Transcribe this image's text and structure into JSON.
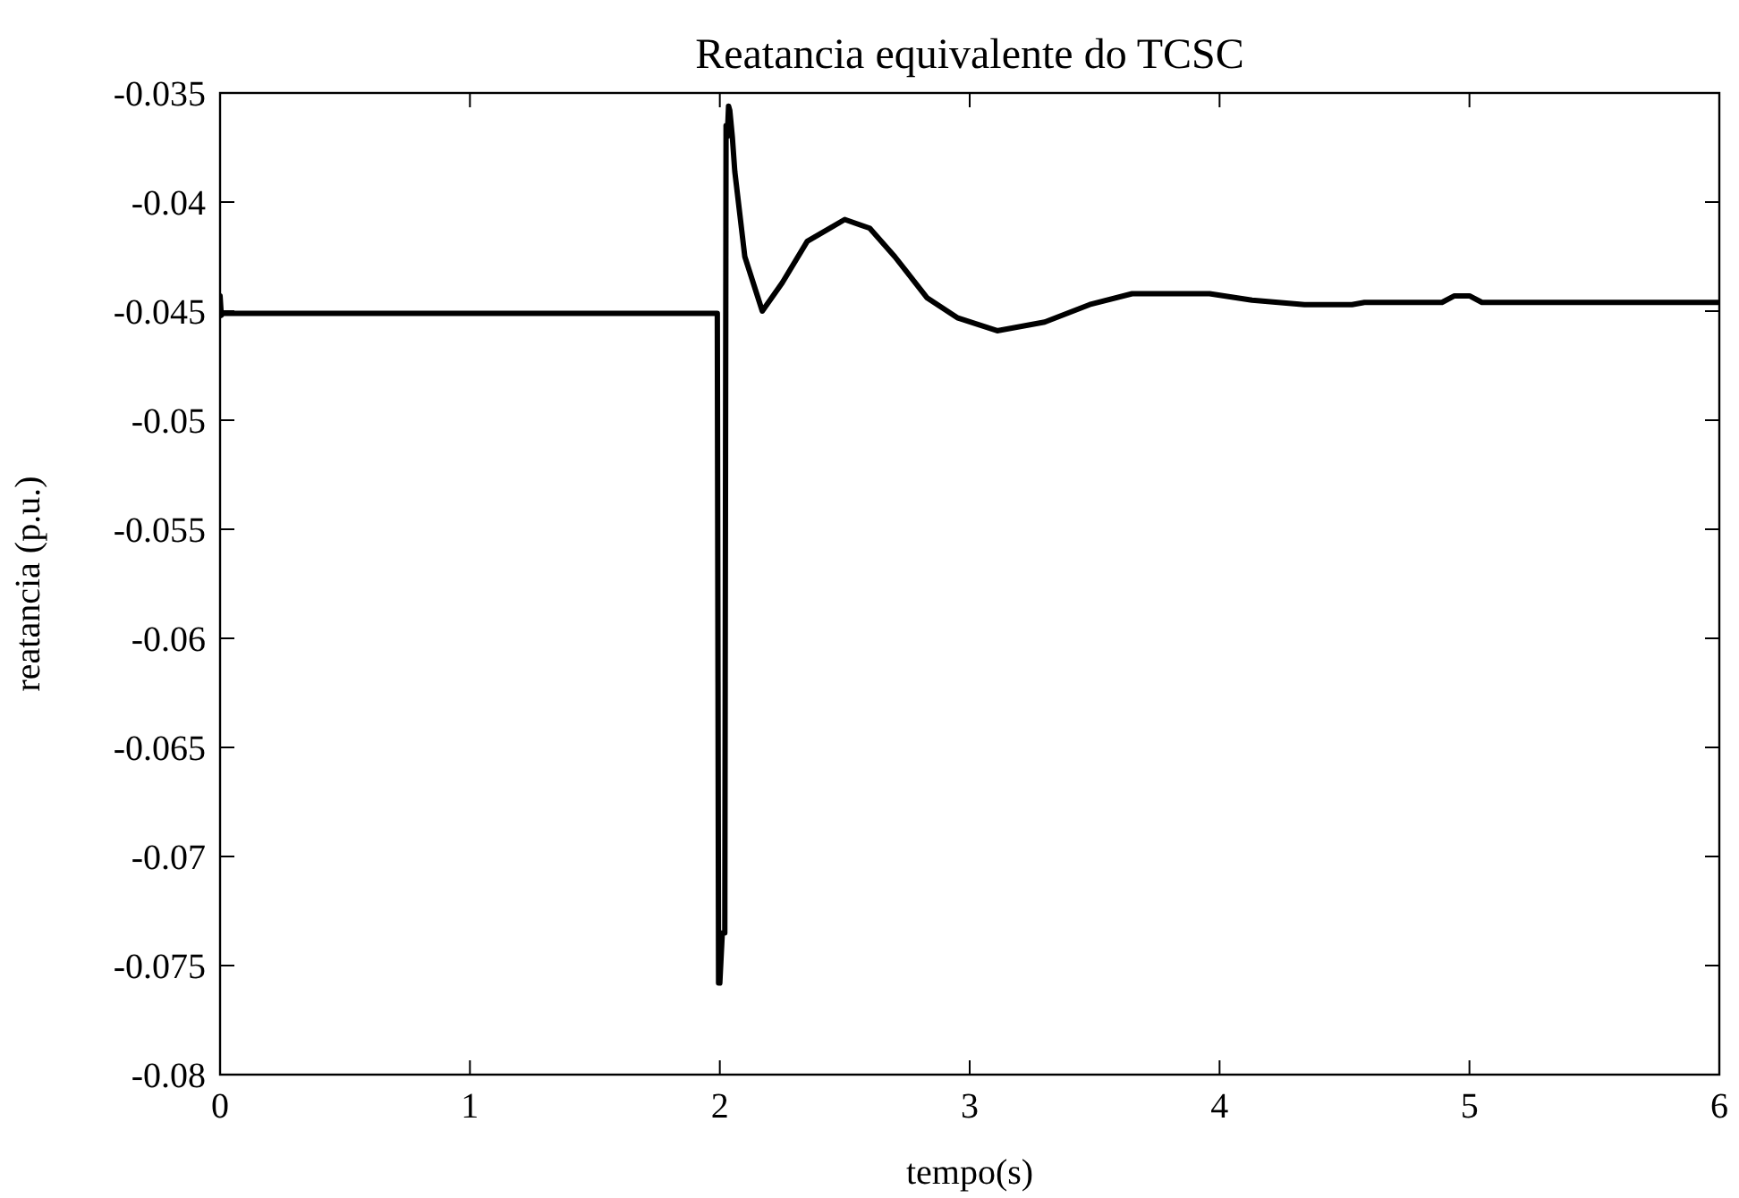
{
  "chart_data": {
    "type": "line",
    "title": "Reatancia equivalente do TCSC",
    "xlabel": "tempo(s)",
    "ylabel": "reatancia (p.u.)",
    "xlim": [
      0,
      6
    ],
    "xticks": [
      0,
      1,
      2,
      3,
      4,
      5,
      6
    ],
    "ylim": [
      -0.08,
      -0.035
    ],
    "yticks": [
      -0.08,
      -0.075,
      -0.07,
      -0.065,
      -0.06,
      -0.055,
      -0.05,
      -0.045,
      -0.04,
      -0.035
    ],
    "grid": false,
    "marker": "none",
    "line_style": "solid",
    "series": [
      {
        "color": "#000000",
        "x": [
          0,
          0.005,
          0.01,
          1.0,
          1.99,
          1.995,
          2.0,
          2.01,
          2.02,
          2.025,
          2.03,
          2.035,
          2.04,
          2.05,
          2.06,
          2.1,
          2.17,
          2.25,
          2.35,
          2.5,
          2.6,
          2.7,
          2.83,
          2.95,
          3.11,
          3.3,
          3.48,
          3.65,
          3.8,
          3.96,
          4.13,
          4.34,
          4.53,
          4.58,
          4.89,
          4.94,
          5.0,
          5.05,
          5.5,
          6.0
        ],
        "values": [
          -0.0443,
          -0.0452,
          -0.0451,
          -0.0451,
          -0.0451,
          -0.0758,
          -0.0758,
          -0.0735,
          -0.0735,
          -0.0365,
          -0.037,
          -0.0356,
          -0.0358,
          -0.037,
          -0.0386,
          -0.0425,
          -0.045,
          -0.0437,
          -0.0418,
          -0.0408,
          -0.0412,
          -0.0425,
          -0.0444,
          -0.0453,
          -0.0459,
          -0.0455,
          -0.0447,
          -0.0442,
          -0.0442,
          -0.0442,
          -0.0445,
          -0.0447,
          -0.0447,
          -0.0446,
          -0.0446,
          -0.0443,
          -0.0443,
          -0.0446,
          -0.0446,
          -0.0446
        ]
      }
    ]
  }
}
